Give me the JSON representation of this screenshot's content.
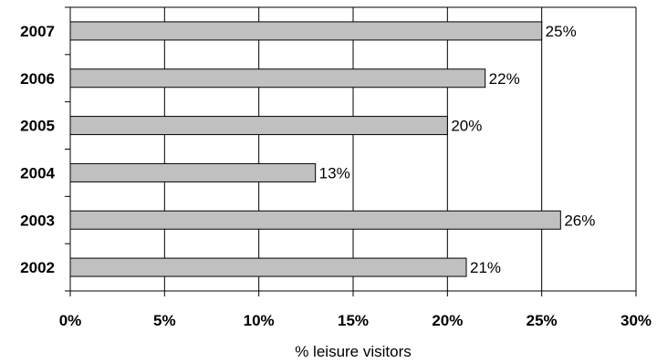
{
  "chart_data": {
    "type": "bar",
    "orientation": "horizontal",
    "categories": [
      "2007",
      "2006",
      "2005",
      "2004",
      "2003",
      "2002"
    ],
    "values": [
      25,
      22,
      20,
      13,
      26,
      21
    ],
    "data_labels": [
      "25%",
      "22%",
      "20%",
      "13%",
      "26%",
      "21%"
    ],
    "xlabel": "%  leisure visitors",
    "xlim": [
      0,
      30
    ],
    "xticks": [
      0,
      5,
      10,
      15,
      20,
      25,
      30
    ],
    "xtick_labels": [
      "0%",
      "5%",
      "10%",
      "15%",
      "20%",
      "25%",
      "30%"
    ],
    "grid": "vertical",
    "legend": "none",
    "colors": {
      "bar_fill": "#c0c0c0",
      "bar_stroke": "#000000",
      "grid": "#000000"
    }
  }
}
